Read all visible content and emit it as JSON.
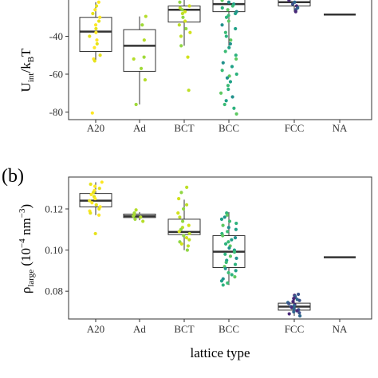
{
  "panel_b_label": "(b)",
  "top_ylabel_main": "U",
  "top_ylabel_sub1": "int",
  "top_ylabel_mid": "/k",
  "top_ylabel_sub2": "B",
  "top_ylabel_end": "T",
  "bottom_ylabel_main": "ρ",
  "bottom_ylabel_sub": "large",
  "bottom_ylabel_unit_open": " (10",
  "bottom_ylabel_sup1": "−4",
  "bottom_ylabel_unit_mid": " nm",
  "bottom_ylabel_sup2": "−3",
  "bottom_ylabel_unit_close": ")",
  "xlabel": "lattice type",
  "chart_data": [
    {
      "type": "box",
      "panel": "a",
      "categories": [
        "A20",
        "Ad",
        "BCT",
        "BCC",
        "FCC",
        "NA"
      ],
      "yticks": [
        "-40",
        "-60",
        "-80"
      ],
      "ytick_values": [
        -40,
        -60,
        -80
      ],
      "ylim": [
        -84,
        -20
      ],
      "boxes": [
        {
          "category": "A20",
          "q1": -48,
          "median": -37.5,
          "q3": -30,
          "whisker_low": -53,
          "whisker_high": -22,
          "color": "#e6e21a"
        },
        {
          "category": "Ad",
          "q1": -58.5,
          "median": -45,
          "q3": -36.5,
          "whisker_low": -76,
          "whisker_high": -29.5,
          "color": "#b5dd2b"
        },
        {
          "category": "BCT",
          "q1": -32.5,
          "median": -26,
          "q3": -24,
          "whisker_low": -45,
          "whisker_high": -20,
          "color": "#95d840"
        },
        {
          "category": "BCC",
          "q1": -27,
          "median": -23,
          "q3": -20,
          "whisker_low": -45,
          "whisker_high": -20,
          "color": "#20a386"
        },
        {
          "category": "FCC",
          "q1": -24,
          "median": -22,
          "q3": -20,
          "whisker_low": -27,
          "whisker_high": -20,
          "color": "#3b528b"
        },
        {
          "category": "NA",
          "q1": -28.5,
          "median": -28.5,
          "q3": -28.5,
          "whisker_low": -28.5,
          "whisker_high": -28.5,
          "color": "#333333"
        }
      ],
      "points": [
        {
          "category": "A20",
          "values": [
            -22,
            -24,
            -26,
            -28,
            -30,
            -32,
            -34,
            -36,
            -38,
            -40,
            -42,
            -44,
            -46,
            -50,
            -52,
            -53,
            -80.5
          ],
          "colors": [
            "#fde725",
            "#e6e21a"
          ]
        },
        {
          "category": "Ad",
          "values": [
            -29.5,
            -34,
            -42,
            -51,
            -52,
            -57,
            -63,
            -76
          ],
          "colors": [
            "#b5dd2b",
            "#a0da39"
          ]
        },
        {
          "category": "BCT",
          "values": [
            -20,
            -22,
            -24,
            -25,
            -26,
            -27,
            -28,
            -30,
            -32,
            -34,
            -36,
            -38,
            -40,
            -45,
            -51,
            -68.5
          ],
          "colors": [
            "#bddf26",
            "#90d743",
            "#d2e21b"
          ]
        },
        {
          "category": "BCC",
          "values": [
            -20,
            -21,
            -22,
            -23,
            -24,
            -25,
            -26,
            -27,
            -28,
            -29,
            -30,
            -32,
            -34,
            -36,
            -38,
            -40,
            -42,
            -44,
            -46,
            -48,
            -50,
            -52,
            -54,
            -56,
            -58,
            -60,
            -61,
            -62,
            -64,
            -66,
            -68,
            -70,
            -72,
            -74,
            -76,
            -78,
            -81
          ],
          "colors": [
            "#2db27d",
            "#5ec962",
            "#21918c",
            "#1fa187",
            "#3bbb75"
          ]
        },
        {
          "category": "FCC",
          "values": [
            -20,
            -21,
            -22,
            -23,
            -24,
            -25,
            -26,
            -27
          ],
          "colors": [
            "#3b528b",
            "#482878",
            "#31688e"
          ]
        }
      ]
    },
    {
      "type": "box",
      "panel": "b",
      "categories": [
        "A20",
        "Ad",
        "BCT",
        "BCC",
        "FCC",
        "NA"
      ],
      "yticks": [
        "0.12",
        "0.10",
        "0.08"
      ],
      "ytick_values": [
        0.12,
        0.1,
        0.08
      ],
      "ylim": [
        0.0665,
        0.1355
      ],
      "boxes": [
        {
          "category": "A20",
          "q1": 0.121,
          "median": 0.124,
          "q3": 0.1275,
          "whisker_low": 0.117,
          "whisker_high": 0.133,
          "color": "#e6e21a"
        },
        {
          "category": "Ad",
          "q1": 0.1158,
          "median": 0.1165,
          "q3": 0.1175,
          "whisker_low": 0.1145,
          "whisker_high": 0.1185,
          "color": "#b5dd2b"
        },
        {
          "category": "BCT",
          "q1": 0.1075,
          "median": 0.1088,
          "q3": 0.115,
          "whisker_low": 0.1,
          "whisker_high": 0.1245,
          "color": "#95d840"
        },
        {
          "category": "BCC",
          "q1": 0.0915,
          "median": 0.0992,
          "q3": 0.107,
          "whisker_low": 0.083,
          "whisker_high": 0.1185,
          "color": "#20a386"
        },
        {
          "category": "FCC",
          "q1": 0.0708,
          "median": 0.0725,
          "q3": 0.0742,
          "whisker_low": 0.068,
          "whisker_high": 0.0785,
          "color": "#3b528b"
        },
        {
          "category": "NA",
          "q1": 0.0965,
          "median": 0.0965,
          "q3": 0.0965,
          "whisker_low": 0.0965,
          "whisker_high": 0.0965,
          "color": "#333333"
        }
      ],
      "points": [
        {
          "category": "A20",
          "values": [
            0.133,
            0.132,
            0.131,
            0.13,
            0.129,
            0.128,
            0.127,
            0.126,
            0.125,
            0.124,
            0.123,
            0.122,
            0.121,
            0.12,
            0.119,
            0.118,
            0.117,
            0.108
          ],
          "colors": [
            "#fde725",
            "#e6e21a"
          ]
        },
        {
          "category": "Ad",
          "values": [
            0.1195,
            0.118,
            0.117,
            0.1165,
            0.116,
            0.115,
            0.114
          ],
          "colors": [
            "#b5dd2b",
            "#a0da39"
          ]
        },
        {
          "category": "BCT",
          "values": [
            0.1305,
            0.128,
            0.125,
            0.122,
            0.12,
            0.118,
            0.116,
            0.114,
            0.112,
            0.111,
            0.11,
            0.109,
            0.108,
            0.107,
            0.106,
            0.105,
            0.104,
            0.103,
            0.102,
            0.1
          ],
          "colors": [
            "#bddf26",
            "#90d743",
            "#d2e21b"
          ]
        },
        {
          "category": "BCC",
          "values": [
            0.118,
            0.117,
            0.116,
            0.115,
            0.114,
            0.113,
            0.112,
            0.111,
            0.11,
            0.109,
            0.108,
            0.107,
            0.106,
            0.105,
            0.104,
            0.103,
            0.102,
            0.101,
            0.1,
            0.099,
            0.098,
            0.097,
            0.096,
            0.095,
            0.094,
            0.093,
            0.092,
            0.091,
            0.09,
            0.089,
            0.088,
            0.087,
            0.086,
            0.085,
            0.084,
            0.083
          ],
          "colors": [
            "#2db27d",
            "#5ec962",
            "#21918c",
            "#1fa187",
            "#3bbb75"
          ]
        },
        {
          "category": "FCC",
          "values": [
            0.0785,
            0.078,
            0.0775,
            0.077,
            0.0765,
            0.076,
            0.0755,
            0.075,
            0.0745,
            0.074,
            0.0735,
            0.073,
            0.0725,
            0.072,
            0.0715,
            0.071,
            0.0705,
            0.07,
            0.0695,
            0.069,
            0.068
          ],
          "colors": [
            "#3b528b",
            "#482878",
            "#31688e"
          ]
        }
      ]
    }
  ]
}
